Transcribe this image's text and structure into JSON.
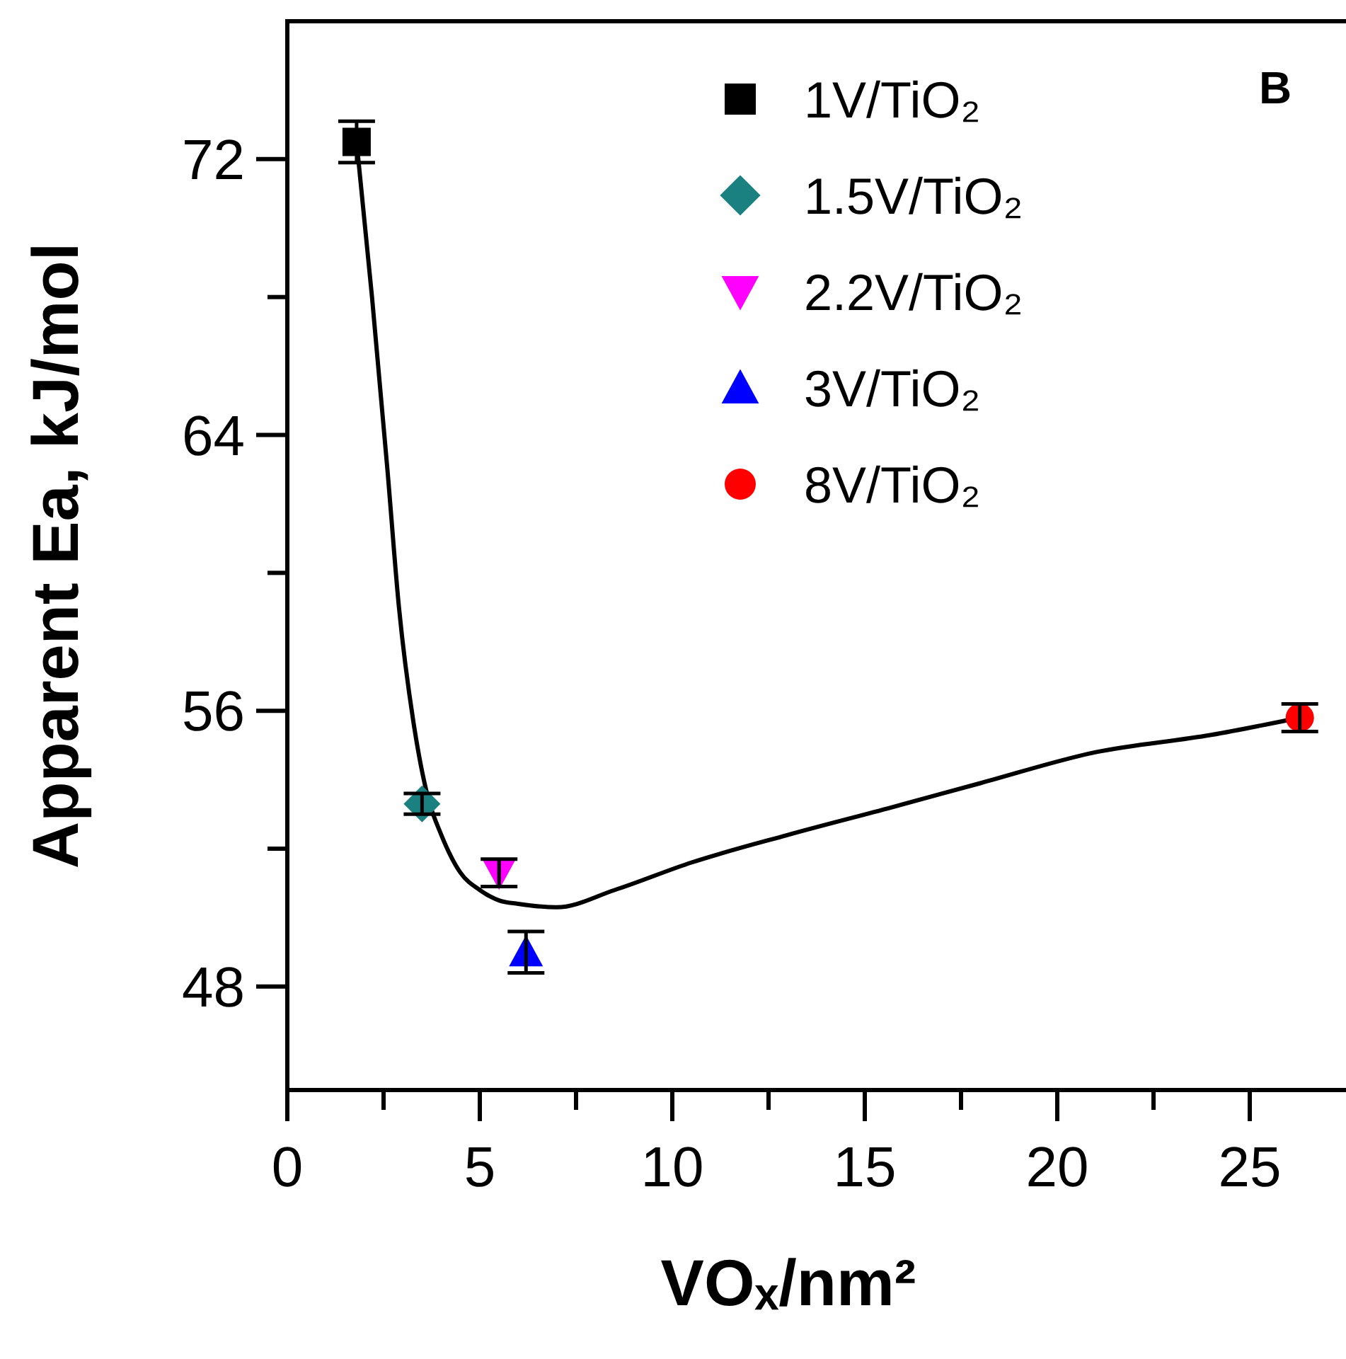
{
  "chart_data": {
    "type": "scatter",
    "xlabel": "VOₓ/nm²",
    "ylabel": "Apparent Ea, kJ/mol",
    "annotations": [
      "B"
    ],
    "xlim": [
      0,
      27.5
    ],
    "ylim": [
      45,
      76
    ],
    "xticks": [
      0,
      {
        "value": 2.5,
        "label": null
      },
      5,
      {
        "value": 7.5,
        "label": null
      },
      10,
      {
        "value": 12.5,
        "label": null
      },
      15,
      {
        "value": 17.5,
        "label": null
      },
      20,
      {
        "value": 22.5,
        "label": null
      },
      25
    ],
    "yticks": [
      48,
      {
        "value": 52,
        "label": null
      },
      56,
      {
        "value": 60,
        "label": null
      },
      64,
      {
        "value": 68,
        "label": null
      },
      72
    ],
    "grid": false,
    "legend": "top right",
    "series": [
      {
        "type": "line",
        "color": "#000000",
        "marker": "none",
        "line_style": "solid",
        "x": [
          1.8,
          2.2,
          2.6,
          2.9,
          3.3,
          3.65,
          4.0,
          4.5,
          5.0,
          5.5,
          6.0,
          7.0,
          8.5,
          10.5,
          13.0,
          15.7,
          18.0,
          21.0,
          24.0,
          26.3
        ],
        "values": [
          72.5,
          68.0,
          63.0,
          59.0,
          55.5,
          53.5,
          52.4,
          51.3,
          50.8,
          50.5,
          50.4,
          50.3,
          50.8,
          51.6,
          52.4,
          53.2,
          53.9,
          54.8,
          55.3,
          55.8
        ]
      },
      {
        "name": "1V/TiO₂",
        "color": "#000000",
        "marker": "square",
        "x": [
          1.8
        ],
        "values": [
          72.5
        ],
        "errors": [
          0.6
        ]
      },
      {
        "name": "1.5V/TiO₂",
        "color": "#1a8080",
        "marker": "diamond",
        "x": [
          3.5
        ],
        "values": [
          53.3
        ],
        "errors": [
          0.3
        ]
      },
      {
        "name": "2.2V/TiO₂",
        "color": "#ff00ff",
        "marker": "triangle-down",
        "x": [
          5.5
        ],
        "values": [
          51.3
        ],
        "errors": [
          0.4
        ]
      },
      {
        "name": "3V/TiO₂",
        "color": "#0000ff",
        "marker": "triangle",
        "x": [
          6.2
        ],
        "values": [
          49.0
        ],
        "errors": [
          0.6
        ]
      },
      {
        "name": "8V/TiO₂",
        "color": "#ff0000",
        "marker": "circle",
        "x": [
          26.3
        ],
        "values": [
          55.8
        ],
        "errors": [
          0.4
        ]
      }
    ]
  }
}
